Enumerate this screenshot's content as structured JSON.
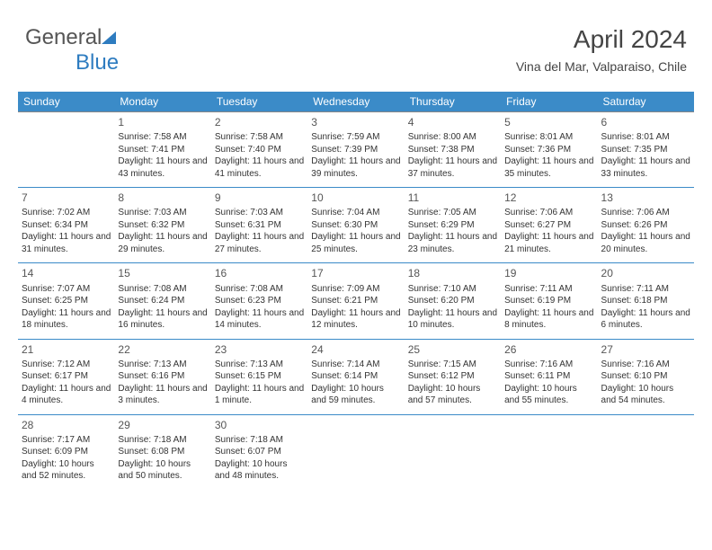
{
  "logo": {
    "text_a": "General",
    "text_b": "Blue"
  },
  "title": "April 2024",
  "location": "Vina del Mar, Valparaiso, Chile",
  "colors": {
    "header_bg": "#3b8bc8",
    "header_fg": "#ffffff",
    "week_sep": "#3b8bc8",
    "text": "#333333",
    "logo_gray": "#555555",
    "logo_blue": "#2e7cc0"
  },
  "day_headers": [
    "Sunday",
    "Monday",
    "Tuesday",
    "Wednesday",
    "Thursday",
    "Friday",
    "Saturday"
  ],
  "weeks": [
    [
      null,
      {
        "n": "1",
        "sr": "Sunrise: 7:58 AM",
        "ss": "Sunset: 7:41 PM",
        "dl": "Daylight: 11 hours and 43 minutes."
      },
      {
        "n": "2",
        "sr": "Sunrise: 7:58 AM",
        "ss": "Sunset: 7:40 PM",
        "dl": "Daylight: 11 hours and 41 minutes."
      },
      {
        "n": "3",
        "sr": "Sunrise: 7:59 AM",
        "ss": "Sunset: 7:39 PM",
        "dl": "Daylight: 11 hours and 39 minutes."
      },
      {
        "n": "4",
        "sr": "Sunrise: 8:00 AM",
        "ss": "Sunset: 7:38 PM",
        "dl": "Daylight: 11 hours and 37 minutes."
      },
      {
        "n": "5",
        "sr": "Sunrise: 8:01 AM",
        "ss": "Sunset: 7:36 PM",
        "dl": "Daylight: 11 hours and 35 minutes."
      },
      {
        "n": "6",
        "sr": "Sunrise: 8:01 AM",
        "ss": "Sunset: 7:35 PM",
        "dl": "Daylight: 11 hours and 33 minutes."
      }
    ],
    [
      {
        "n": "7",
        "sr": "Sunrise: 7:02 AM",
        "ss": "Sunset: 6:34 PM",
        "dl": "Daylight: 11 hours and 31 minutes."
      },
      {
        "n": "8",
        "sr": "Sunrise: 7:03 AM",
        "ss": "Sunset: 6:32 PM",
        "dl": "Daylight: 11 hours and 29 minutes."
      },
      {
        "n": "9",
        "sr": "Sunrise: 7:03 AM",
        "ss": "Sunset: 6:31 PM",
        "dl": "Daylight: 11 hours and 27 minutes."
      },
      {
        "n": "10",
        "sr": "Sunrise: 7:04 AM",
        "ss": "Sunset: 6:30 PM",
        "dl": "Daylight: 11 hours and 25 minutes."
      },
      {
        "n": "11",
        "sr": "Sunrise: 7:05 AM",
        "ss": "Sunset: 6:29 PM",
        "dl": "Daylight: 11 hours and 23 minutes."
      },
      {
        "n": "12",
        "sr": "Sunrise: 7:06 AM",
        "ss": "Sunset: 6:27 PM",
        "dl": "Daylight: 11 hours and 21 minutes."
      },
      {
        "n": "13",
        "sr": "Sunrise: 7:06 AM",
        "ss": "Sunset: 6:26 PM",
        "dl": "Daylight: 11 hours and 20 minutes."
      }
    ],
    [
      {
        "n": "14",
        "sr": "Sunrise: 7:07 AM",
        "ss": "Sunset: 6:25 PM",
        "dl": "Daylight: 11 hours and 18 minutes."
      },
      {
        "n": "15",
        "sr": "Sunrise: 7:08 AM",
        "ss": "Sunset: 6:24 PM",
        "dl": "Daylight: 11 hours and 16 minutes."
      },
      {
        "n": "16",
        "sr": "Sunrise: 7:08 AM",
        "ss": "Sunset: 6:23 PM",
        "dl": "Daylight: 11 hours and 14 minutes."
      },
      {
        "n": "17",
        "sr": "Sunrise: 7:09 AM",
        "ss": "Sunset: 6:21 PM",
        "dl": "Daylight: 11 hours and 12 minutes."
      },
      {
        "n": "18",
        "sr": "Sunrise: 7:10 AM",
        "ss": "Sunset: 6:20 PM",
        "dl": "Daylight: 11 hours and 10 minutes."
      },
      {
        "n": "19",
        "sr": "Sunrise: 7:11 AM",
        "ss": "Sunset: 6:19 PM",
        "dl": "Daylight: 11 hours and 8 minutes."
      },
      {
        "n": "20",
        "sr": "Sunrise: 7:11 AM",
        "ss": "Sunset: 6:18 PM",
        "dl": "Daylight: 11 hours and 6 minutes."
      }
    ],
    [
      {
        "n": "21",
        "sr": "Sunrise: 7:12 AM",
        "ss": "Sunset: 6:17 PM",
        "dl": "Daylight: 11 hours and 4 minutes."
      },
      {
        "n": "22",
        "sr": "Sunrise: 7:13 AM",
        "ss": "Sunset: 6:16 PM",
        "dl": "Daylight: 11 hours and 3 minutes."
      },
      {
        "n": "23",
        "sr": "Sunrise: 7:13 AM",
        "ss": "Sunset: 6:15 PM",
        "dl": "Daylight: 11 hours and 1 minute."
      },
      {
        "n": "24",
        "sr": "Sunrise: 7:14 AM",
        "ss": "Sunset: 6:14 PM",
        "dl": "Daylight: 10 hours and 59 minutes."
      },
      {
        "n": "25",
        "sr": "Sunrise: 7:15 AM",
        "ss": "Sunset: 6:12 PM",
        "dl": "Daylight: 10 hours and 57 minutes."
      },
      {
        "n": "26",
        "sr": "Sunrise: 7:16 AM",
        "ss": "Sunset: 6:11 PM",
        "dl": "Daylight: 10 hours and 55 minutes."
      },
      {
        "n": "27",
        "sr": "Sunrise: 7:16 AM",
        "ss": "Sunset: 6:10 PM",
        "dl": "Daylight: 10 hours and 54 minutes."
      }
    ],
    [
      {
        "n": "28",
        "sr": "Sunrise: 7:17 AM",
        "ss": "Sunset: 6:09 PM",
        "dl": "Daylight: 10 hours and 52 minutes."
      },
      {
        "n": "29",
        "sr": "Sunrise: 7:18 AM",
        "ss": "Sunset: 6:08 PM",
        "dl": "Daylight: 10 hours and 50 minutes."
      },
      {
        "n": "30",
        "sr": "Sunrise: 7:18 AM",
        "ss": "Sunset: 6:07 PM",
        "dl": "Daylight: 10 hours and 48 minutes."
      },
      null,
      null,
      null,
      null
    ]
  ]
}
